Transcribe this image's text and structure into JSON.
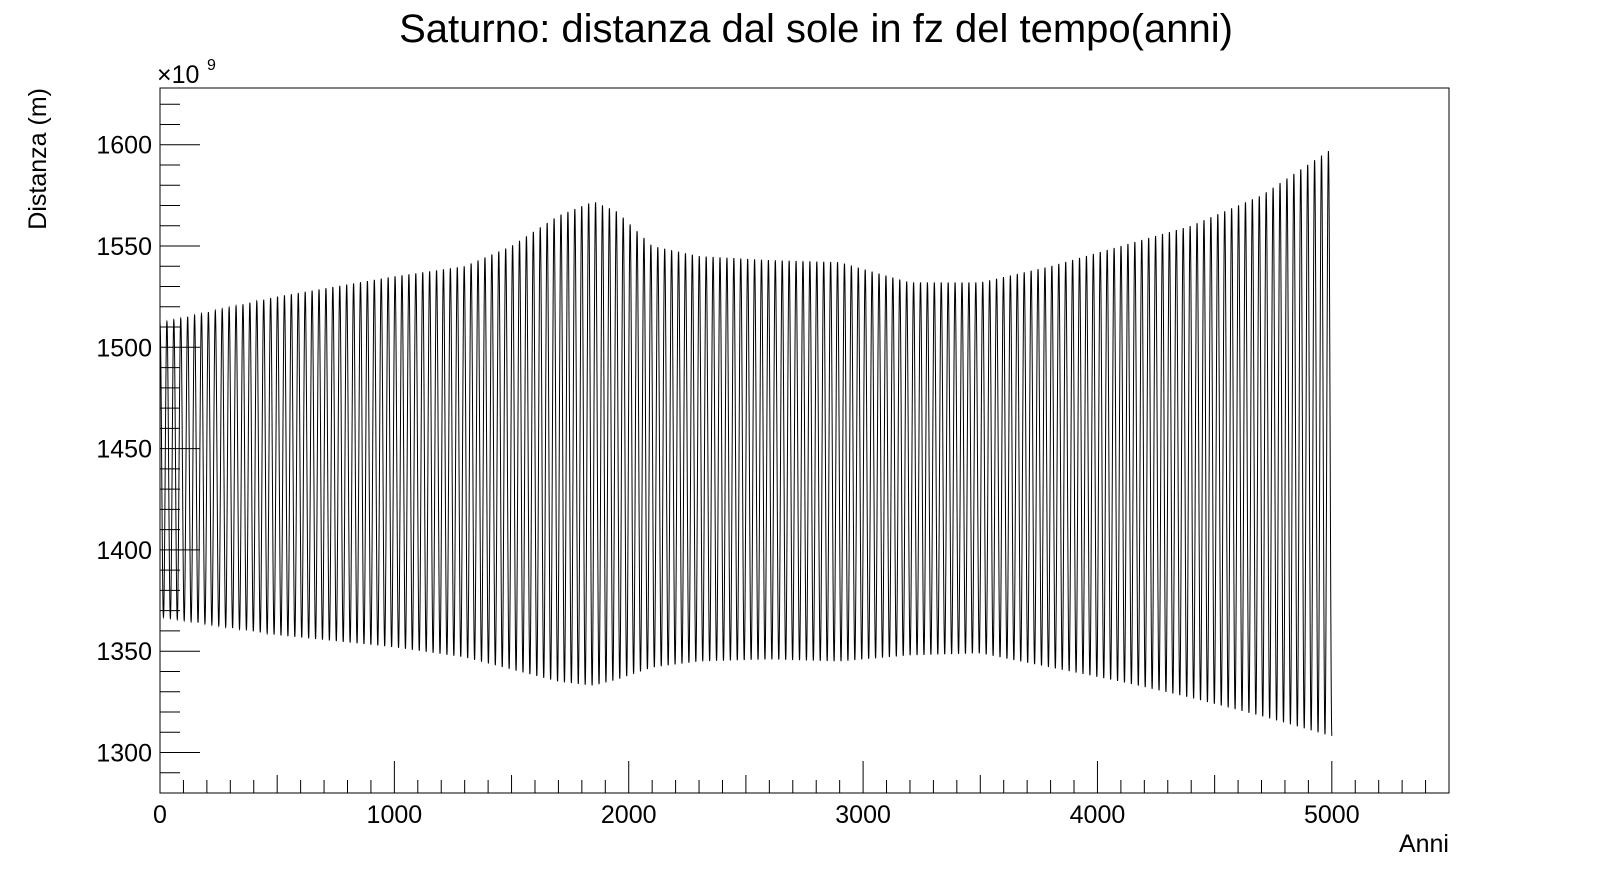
{
  "chart_data": {
    "type": "line",
    "title": "Saturno: distanza dal sole in fz del tempo(anni)",
    "xlabel": "Anni",
    "ylabel": "Distanza (m)",
    "y_multiplier": {
      "base": "×10",
      "exponent": "9"
    },
    "xlim": [
      0,
      5500
    ],
    "ylim": [
      1280,
      1628
    ],
    "x_ticks": [
      0,
      1000,
      2000,
      3000,
      4000,
      5000
    ],
    "x_tick_labels": [
      "0",
      "1000",
      "2000",
      "3000",
      "4000",
      "5000"
    ],
    "y_ticks": [
      1300,
      1350,
      1400,
      1450,
      1500,
      1550,
      1600
    ],
    "y_tick_labels": [
      "1300",
      "1350",
      "1400",
      "1450",
      "1500",
      "1550",
      "1600"
    ],
    "grid": false,
    "line_color": "#000000",
    "series": [
      {
        "orbital_period_years": 29.5,
        "x_start": 0,
        "x_end": 5000,
        "envelope_x": [
          0,
          500,
          1000,
          1300,
          1500,
          1700,
          1850,
          1950,
          2100,
          2300,
          2600,
          2900,
          3200,
          3500,
          3800,
          4100,
          4400,
          4700,
          5000
        ],
        "envelope_max": [
          1512,
          1525,
          1535,
          1540,
          1550,
          1565,
          1572,
          1567,
          1550,
          1545,
          1543,
          1542,
          1532,
          1532,
          1540,
          1550,
          1560,
          1575,
          1598
        ],
        "envelope_min": [
          1367,
          1358,
          1352,
          1347,
          1341,
          1335,
          1333,
          1336,
          1342,
          1345,
          1346,
          1345,
          1348,
          1349,
          1342,
          1335,
          1327,
          1318,
          1308
        ]
      }
    ]
  }
}
